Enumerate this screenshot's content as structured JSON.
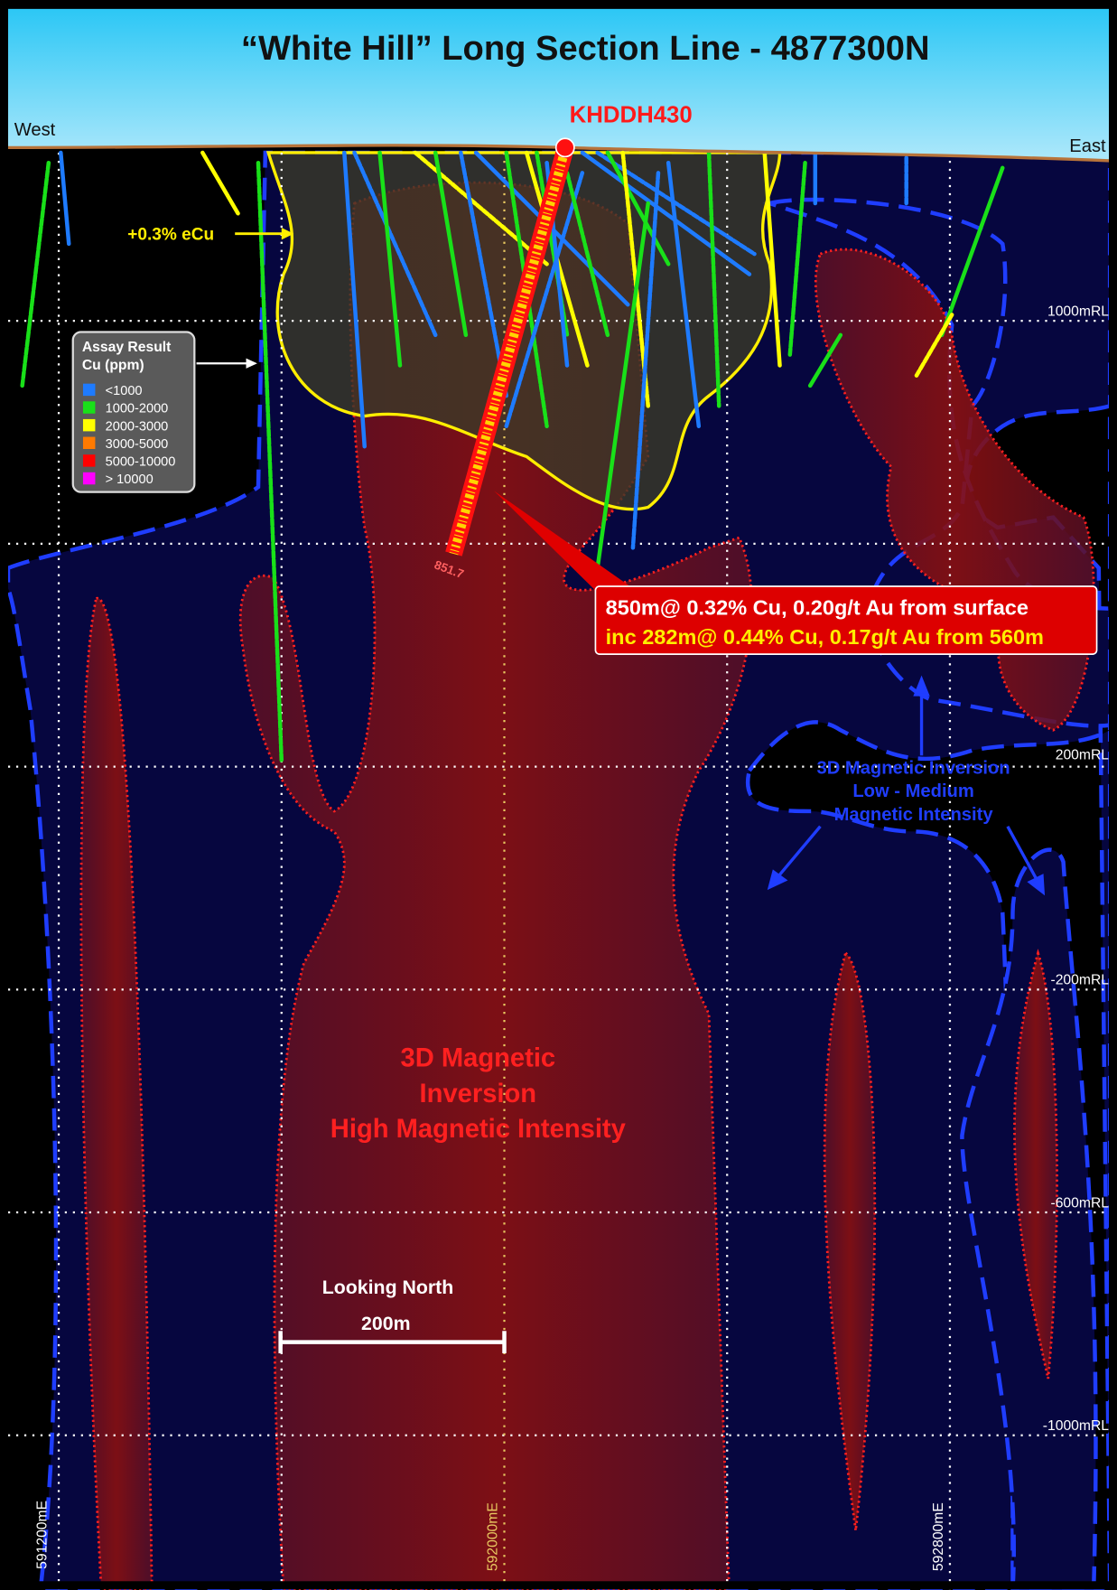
{
  "header": {
    "title": "“White Hill”  Long Section Line - 4877300N"
  },
  "orientation": {
    "west": "West",
    "east": "East"
  },
  "drillhole": {
    "name": "KHDDH430",
    "depth": "851.7"
  },
  "contour": {
    "label": "+0.3% eCu"
  },
  "legend": {
    "title_lines": [
      "Assay Result",
      "Cu (ppm)"
    ],
    "items": [
      {
        "label": "<1000",
        "color": "#1e7bff"
      },
      {
        "label": "1000-2000",
        "color": "#19e019"
      },
      {
        "label": "2000-3000",
        "color": "#ffff00"
      },
      {
        "label": "3000-5000",
        "color": "#ff7a00"
      },
      {
        "label": "5000-10000",
        "color": "#ff0000"
      },
      {
        "label": "> 10000",
        "color": "#ff00ff"
      }
    ]
  },
  "callout": {
    "lines": [
      "850m@ 0.32% Cu, 0.20g/t Au from surface",
      "inc 282m@ 0.44% Cu, 0.17g/t Au from 560m"
    ]
  },
  "rl_labels": [
    "1000mRL",
    "200mRL",
    "-200mRL",
    "-600mRL",
    "-1000mRL"
  ],
  "easting_labels": [
    "591200mE",
    "592000mE",
    "592800mE"
  ],
  "annotations": {
    "high": [
      "3D Magnetic",
      "Inversion",
      "High Magnetic Intensity"
    ],
    "low": [
      "3D Magnetic Inversion",
      "Low - Medium",
      "Magnetic Intensity"
    ]
  },
  "scale": {
    "direction": "Looking North",
    "length": "200m"
  }
}
